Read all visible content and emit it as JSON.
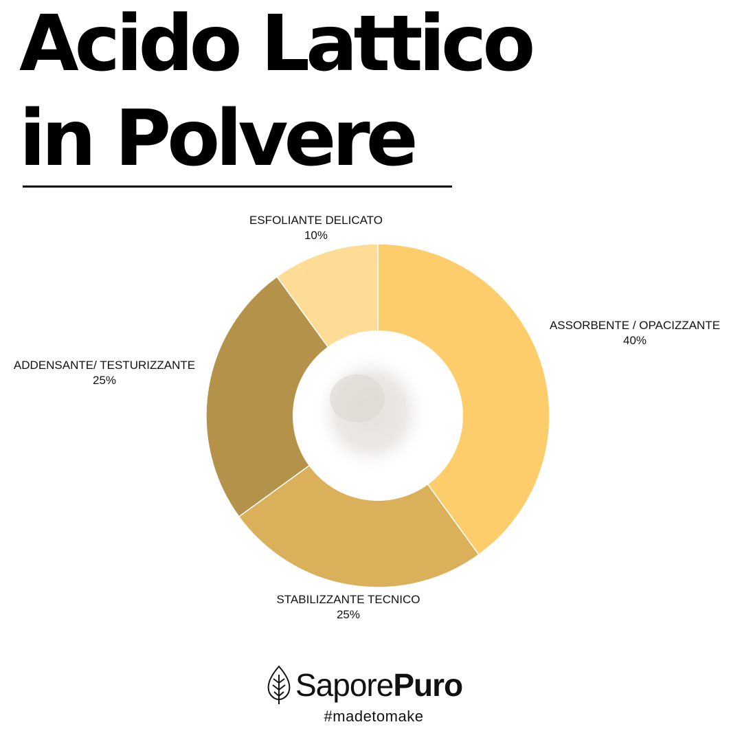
{
  "title": {
    "line1": "Acido Lattico",
    "line2": "in Polvere"
  },
  "chart_data": {
    "type": "pie",
    "variant": "donut",
    "categories": [
      "ASSORBENTE / OPACIZZANTE",
      "STABILIZZANTE TECNICO",
      "ADDENSANTE/ TESTURIZZANTE",
      "ESFOLIANTE DELICATO"
    ],
    "values": [
      40,
      25,
      25,
      10
    ],
    "value_labels": [
      "40%",
      "25%",
      "25%",
      "10%"
    ],
    "colors": [
      "#FDCD6C",
      "#DBB05B",
      "#B59249",
      "#FEDC95"
    ],
    "center_image": "powder"
  },
  "brand": {
    "name_light": "Sapore",
    "name_bold": "Puro",
    "tagline": "#madetomake",
    "icon": "leaf-icon"
  }
}
